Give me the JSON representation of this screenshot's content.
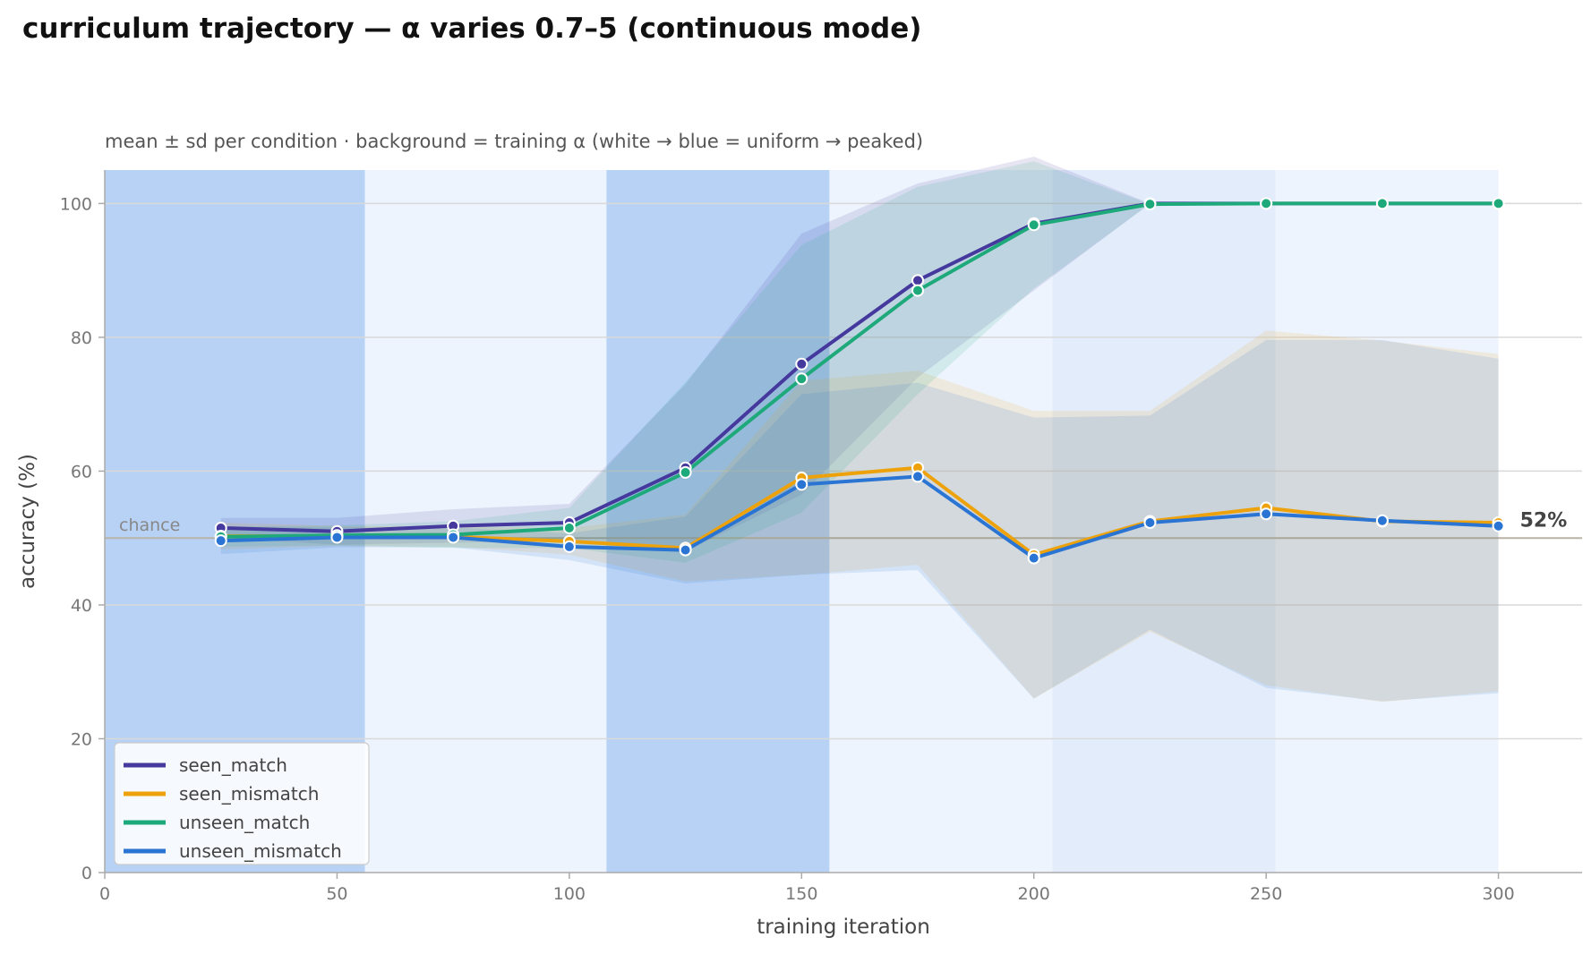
{
  "title": "curriculum trajectory — α varies 0.7–5 (continuous mode)",
  "subtitle": "mean ± sd per condition · background = training α (white → blue = uniform → peaked)",
  "chart_data": {
    "type": "line",
    "xlabel": "training iteration",
    "ylabel": "accuracy (%)",
    "xlim": [
      0,
      318
    ],
    "ylim": [
      0,
      105
    ],
    "xticks": [
      0,
      50,
      100,
      150,
      200,
      250,
      300
    ],
    "yticks": [
      0,
      20,
      40,
      60,
      80,
      100
    ],
    "grid": "horizontal",
    "legend_position": "bottom-left",
    "chance": {
      "value": 50,
      "label": "chance"
    },
    "end_label": "52%",
    "x": [
      25,
      50,
      75,
      100,
      125,
      150,
      175,
      200,
      225,
      250,
      275,
      300
    ],
    "alpha_bands": [
      {
        "from": 0,
        "to": 56,
        "level": "peaked"
      },
      {
        "from": 56,
        "to": 108,
        "level": "uniform"
      },
      {
        "from": 108,
        "to": 156,
        "level": "peaked"
      },
      {
        "from": 156,
        "to": 204,
        "level": "uniform"
      },
      {
        "from": 204,
        "to": 252,
        "level": "light"
      },
      {
        "from": 252,
        "to": 300,
        "level": "uniform"
      }
    ],
    "series": [
      {
        "name": "seen_match",
        "color": "#45399e",
        "values": [
          51.5,
          51.0,
          51.8,
          52.3,
          60.5,
          76.0,
          88.5,
          97.0,
          100.0,
          100.0,
          100.0,
          100.0
        ],
        "sd": [
          1.5,
          2.0,
          2.5,
          2.8,
          12.5,
          19.5,
          14.5,
          10.0,
          0.0,
          0.0,
          0.0,
          0.0
        ]
      },
      {
        "name": "seen_mismatch",
        "color": "#eda20c",
        "values": [
          50.3,
          50.3,
          50.2,
          49.5,
          48.5,
          59.0,
          60.5,
          47.5,
          52.5,
          54.5,
          52.5,
          52.3
        ],
        "sd": [
          2.0,
          1.5,
          1.5,
          2.0,
          5.0,
          14.5,
          14.5,
          21.5,
          16.5,
          26.5,
          27.0,
          25.2
        ]
      },
      {
        "name": "unseen_match",
        "color": "#1ea97b",
        "values": [
          50.2,
          50.4,
          50.5,
          51.5,
          59.8,
          73.8,
          87.0,
          96.8,
          99.9,
          100.0,
          100.0,
          100.0
        ],
        "sd": [
          1.5,
          1.5,
          2.0,
          3.0,
          13.5,
          20.0,
          15.5,
          9.5,
          0.0,
          0.0,
          0.0,
          0.0
        ]
      },
      {
        "name": "unseen_mismatch",
        "color": "#2a74d3",
        "values": [
          49.6,
          50.1,
          50.1,
          48.7,
          48.2,
          58.0,
          59.2,
          47.0,
          52.3,
          53.6,
          52.6,
          51.8
        ],
        "sd": [
          2.0,
          1.5,
          1.5,
          2.0,
          5.0,
          13.5,
          14.0,
          21.0,
          16.0,
          26.0,
          27.0,
          25.0
        ]
      }
    ]
  }
}
